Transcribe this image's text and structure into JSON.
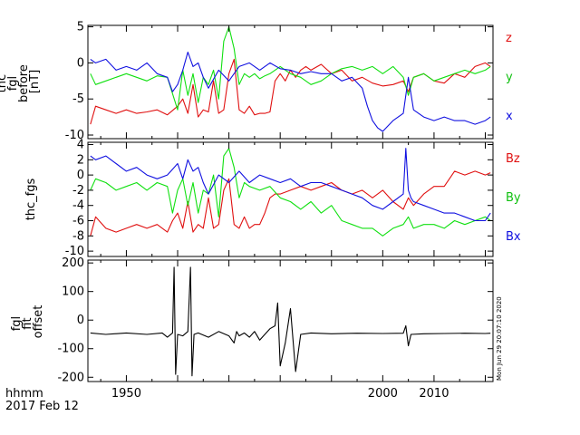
{
  "chart_data": [
    {
      "type": "line",
      "ylabel_lines": [
        "thc",
        "fgl",
        "before",
        "[nT]"
      ],
      "ylim": [
        -10.5,
        5.2
      ],
      "yticks": [
        {
          "v": 5,
          "t": "5"
        },
        {
          "v": 0,
          "t": "0"
        },
        {
          "v": -5,
          "t": "-5"
        },
        {
          "v": -10,
          "t": "-10"
        }
      ],
      "series": [
        {
          "name": "z",
          "color": "#e01010",
          "x": [
            1943,
            1944,
            1946,
            1948,
            1950,
            1952,
            1954,
            1956,
            1958,
            1960,
            1961,
            1962,
            1963,
            1964,
            1965,
            1966,
            1967,
            1968,
            1969,
            1970,
            1971,
            1972,
            1973,
            1974,
            1975,
            1976,
            1977,
            1978,
            1979,
            1980,
            1981,
            1982,
            1983,
            1984,
            1985,
            1986,
            1988,
            1990,
            1992,
            1994,
            1996,
            1998,
            2000,
            2002,
            2004,
            2005,
            2006,
            2008,
            2010,
            2012,
            2014,
            2016,
            2018,
            2020,
            2021
          ],
          "y": [
            -8.5,
            -6.0,
            -6.5,
            -7.0,
            -6.5,
            -7.0,
            -6.8,
            -6.5,
            -7.2,
            -6.0,
            -5.0,
            -7.0,
            -3.0,
            -7.5,
            -6.5,
            -6.8,
            -2.5,
            -7.0,
            -6.5,
            -1.5,
            0.5,
            -6.5,
            -7.0,
            -6.0,
            -7.2,
            -7.0,
            -7.0,
            -6.8,
            -2.5,
            -1.5,
            -2.5,
            -1.0,
            -2.0,
            -1.0,
            -0.5,
            -1.0,
            -0.2,
            -1.5,
            -1.0,
            -2.5,
            -2.0,
            -2.8,
            -3.2,
            -3.0,
            -2.5,
            -4.0,
            -2.0,
            -1.5,
            -2.5,
            -2.8,
            -1.5,
            -2.0,
            -0.5,
            0.0,
            -0.5
          ]
        },
        {
          "name": "y",
          "color": "#10e010",
          "x": [
            1943,
            1944,
            1946,
            1948,
            1950,
            1952,
            1954,
            1956,
            1958,
            1960,
            1961,
            1962,
            1963,
            1964,
            1965,
            1966,
            1967,
            1968,
            1969,
            1970,
            1971,
            1972,
            1973,
            1974,
            1975,
            1976,
            1977,
            1978,
            1979,
            1980,
            1982,
            1984,
            1986,
            1988,
            1990,
            1992,
            1994,
            1996,
            1998,
            2000,
            2002,
            2004,
            2005,
            2006,
            2008,
            2010,
            2012,
            2014,
            2016,
            2018,
            2020,
            2021
          ],
          "y": [
            -1.5,
            -3.0,
            -2.5,
            -2.0,
            -1.5,
            -2.0,
            -2.5,
            -1.8,
            -2.0,
            -6.5,
            -1.0,
            -4.5,
            -1.5,
            -5.5,
            -2.0,
            -3.0,
            -1.0,
            -5.0,
            3.0,
            5.0,
            2.0,
            -3.0,
            -1.5,
            -2.0,
            -1.5,
            -2.2,
            -1.8,
            -1.5,
            -1.0,
            -0.5,
            -1.5,
            -2.0,
            -3.0,
            -2.5,
            -1.5,
            -0.8,
            -0.5,
            -1.0,
            -0.5,
            -1.5,
            -0.5,
            -2.0,
            -4.5,
            -2.0,
            -1.5,
            -2.5,
            -2.0,
            -1.5,
            -1.0,
            -1.5,
            -1.0,
            -0.5
          ]
        },
        {
          "name": "x",
          "color": "#1010e0",
          "x": [
            1943,
            1944,
            1946,
            1948,
            1950,
            1952,
            1954,
            1956,
            1958,
            1959,
            1960,
            1961,
            1962,
            1963,
            1964,
            1965,
            1966,
            1968,
            1970,
            1972,
            1974,
            1976,
            1978,
            1980,
            1982,
            1984,
            1986,
            1988,
            1990,
            1992,
            1994,
            1996,
            1997,
            1998,
            1999,
            2000,
            2002,
            2004,
            2005,
            2006,
            2008,
            2010,
            2012,
            2014,
            2016,
            2018,
            2020,
            2021
          ],
          "y": [
            0.5,
            0.0,
            0.5,
            -1.0,
            -0.5,
            -1.0,
            0.0,
            -1.5,
            -2.0,
            -4.0,
            -3.0,
            -1.0,
            1.5,
            -0.5,
            0.0,
            -2.0,
            -3.5,
            -1.0,
            -2.5,
            -0.5,
            0.0,
            -1.0,
            0.0,
            -0.8,
            -1.0,
            -1.5,
            -1.2,
            -1.5,
            -1.5,
            -2.5,
            -2.0,
            -3.5,
            -6.0,
            -8.0,
            -9.0,
            -9.5,
            -8.0,
            -7.0,
            -2.0,
            -6.5,
            -7.5,
            -8.0,
            -7.5,
            -8.0,
            -8.0,
            -8.5,
            -8.0,
            -7.5
          ]
        }
      ]
    },
    {
      "type": "line",
      "ylabel_lines": [
        "thc_fgs"
      ],
      "ylim": [
        -10.7,
        4.3
      ],
      "yticks": [
        {
          "v": 4,
          "t": "4"
        },
        {
          "v": 2,
          "t": "2"
        },
        {
          "v": 0,
          "t": "0"
        },
        {
          "v": -2,
          "t": "-2"
        },
        {
          "v": -4,
          "t": "-4"
        },
        {
          "v": -6,
          "t": "-6"
        },
        {
          "v": -8,
          "t": "-8"
        },
        {
          "v": -10,
          "t": "-10"
        }
      ],
      "series": [
        {
          "name": "Bz",
          "color": "#e01010",
          "x": [
            1943,
            1944,
            1946,
            1948,
            1950,
            1952,
            1954,
            1956,
            1958,
            1959,
            1960,
            1961,
            1962,
            1963,
            1964,
            1965,
            1966,
            1967,
            1968,
            1969,
            1970,
            1971,
            1972,
            1973,
            1974,
            1975,
            1976,
            1977,
            1978,
            1979,
            1980,
            1982,
            1984,
            1986,
            1988,
            1990,
            1992,
            1994,
            1996,
            1998,
            2000,
            2002,
            2004,
            2005,
            2006,
            2008,
            2010,
            2012,
            2014,
            2016,
            2018,
            2020,
            2021
          ],
          "y": [
            -8.0,
            -5.5,
            -7.0,
            -7.5,
            -7.0,
            -6.5,
            -7.0,
            -6.5,
            -7.5,
            -6.0,
            -5.0,
            -7.0,
            -3.5,
            -7.5,
            -6.5,
            -7.0,
            -3.0,
            -7.0,
            -6.5,
            -2.0,
            -0.5,
            -6.5,
            -7.0,
            -5.5,
            -7.0,
            -6.5,
            -6.5,
            -5.0,
            -3.0,
            -2.5,
            -2.5,
            -2.0,
            -1.5,
            -2.0,
            -1.5,
            -1.0,
            -2.0,
            -2.5,
            -2.0,
            -3.0,
            -2.0,
            -3.5,
            -4.5,
            -3.0,
            -4.0,
            -2.5,
            -1.5,
            -1.5,
            0.5,
            0.0,
            0.5,
            0.0,
            0.3
          ]
        },
        {
          "name": "By",
          "color": "#10e010",
          "x": [
            1943,
            1944,
            1946,
            1948,
            1950,
            1952,
            1954,
            1956,
            1958,
            1959,
            1960,
            1961,
            1962,
            1963,
            1964,
            1965,
            1966,
            1967,
            1968,
            1969,
            1970,
            1971,
            1972,
            1973,
            1974,
            1976,
            1978,
            1980,
            1982,
            1984,
            1986,
            1988,
            1990,
            1992,
            1994,
            1996,
            1998,
            2000,
            2002,
            2004,
            2005,
            2006,
            2008,
            2010,
            2012,
            2014,
            2016,
            2018,
            2020,
            2021
          ],
          "y": [
            -2.0,
            -0.5,
            -1.0,
            -2.0,
            -1.5,
            -1.0,
            -2.0,
            -1.0,
            -1.5,
            -5.0,
            -2.0,
            -0.5,
            -4.0,
            -1.0,
            -5.0,
            -2.0,
            -2.5,
            0.0,
            -5.5,
            2.5,
            3.5,
            1.0,
            -3.0,
            -1.0,
            -1.5,
            -2.0,
            -1.5,
            -3.0,
            -3.5,
            -4.5,
            -3.5,
            -5.0,
            -4.0,
            -6.0,
            -6.5,
            -7.0,
            -7.0,
            -8.0,
            -7.0,
            -6.5,
            -5.5,
            -7.0,
            -6.5,
            -6.5,
            -7.0,
            -6.0,
            -6.5,
            -6.0,
            -5.5,
            -6.0
          ]
        },
        {
          "name": "Bx",
          "color": "#1010e0",
          "x": [
            1943,
            1944,
            1946,
            1948,
            1950,
            1952,
            1954,
            1956,
            1958,
            1960,
            1961,
            1962,
            1963,
            1964,
            1965,
            1966,
            1968,
            1970,
            1972,
            1974,
            1976,
            1978,
            1980,
            1982,
            1984,
            1986,
            1988,
            1990,
            1992,
            1994,
            1996,
            1998,
            2000,
            2002,
            2004,
            2004.5,
            2005,
            2005.5,
            2006,
            2008,
            2010,
            2012,
            2014,
            2016,
            2018,
            2020,
            2021
          ],
          "y": [
            2.5,
            2.0,
            2.5,
            1.5,
            0.5,
            1.0,
            0.0,
            -0.5,
            0.0,
            1.5,
            -0.5,
            2.0,
            0.5,
            1.0,
            -1.0,
            -2.5,
            0.0,
            -1.0,
            0.5,
            -1.0,
            0.0,
            -0.5,
            -1.0,
            -0.5,
            -1.5,
            -1.0,
            -1.0,
            -1.5,
            -2.0,
            -2.5,
            -3.0,
            -4.0,
            -4.5,
            -3.5,
            -2.5,
            3.5,
            -2.0,
            -3.0,
            -3.5,
            -4.0,
            -4.5,
            -5.0,
            -5.0,
            -5.5,
            -6.0,
            -6.0,
            -5.0
          ]
        }
      ]
    },
    {
      "type": "line",
      "ylabel_lines": [
        "fgl",
        "fit",
        "offset"
      ],
      "ylim": [
        -215,
        210
      ],
      "yticks": [
        {
          "v": 200,
          "t": "200"
        },
        {
          "v": 100,
          "t": "100"
        },
        {
          "v": 0,
          "t": "0"
        },
        {
          "v": -100,
          "t": "-100"
        },
        {
          "v": -200,
          "t": "-200"
        }
      ],
      "series": [
        {
          "name": "offset",
          "color": "#000000",
          "x": [
            1943,
            1946,
            1950,
            1954,
            1957,
            1958,
            1959,
            1959.3,
            1959.6,
            1960,
            1961,
            1962,
            1962.5,
            1962.8,
            1963.2,
            1964,
            1966,
            1968,
            1970,
            1971,
            1971.5,
            1972,
            1973,
            1974,
            1975,
            1976,
            1977,
            1978,
            1979,
            1979.5,
            1980,
            1981,
            1982,
            1983,
            1984,
            1986,
            1990,
            1995,
            2000,
            2004,
            2004.5,
            2005,
            2005.5,
            2008,
            2012,
            2016,
            2020,
            2021
          ],
          "y": [
            -45,
            -50,
            -45,
            -50,
            -45,
            -60,
            -45,
            185,
            -190,
            -50,
            -55,
            -40,
            185,
            -195,
            -50,
            -45,
            -60,
            -40,
            -55,
            -80,
            -40,
            -55,
            -45,
            -60,
            -40,
            -70,
            -50,
            -30,
            -20,
            60,
            -160,
            -80,
            40,
            -180,
            -50,
            -45,
            -48,
            -46,
            -47,
            -46,
            -20,
            -90,
            -50,
            -48,
            -47,
            -46,
            -47,
            -46
          ]
        }
      ]
    }
  ],
  "xaxis": {
    "xlim": [
      1942.5,
      2021.5
    ],
    "ticks": [
      {
        "v": 1950,
        "t": "1950"
      },
      {
        "v": 2000,
        "t": "2000"
      },
      {
        "v": 2010,
        "t": "2010"
      }
    ],
    "minor_step": 5,
    "label_line1": "hhmm",
    "label_line2": "2017 Feb 12"
  },
  "stamp": "Mon Jun 29 20:07:10 2020"
}
